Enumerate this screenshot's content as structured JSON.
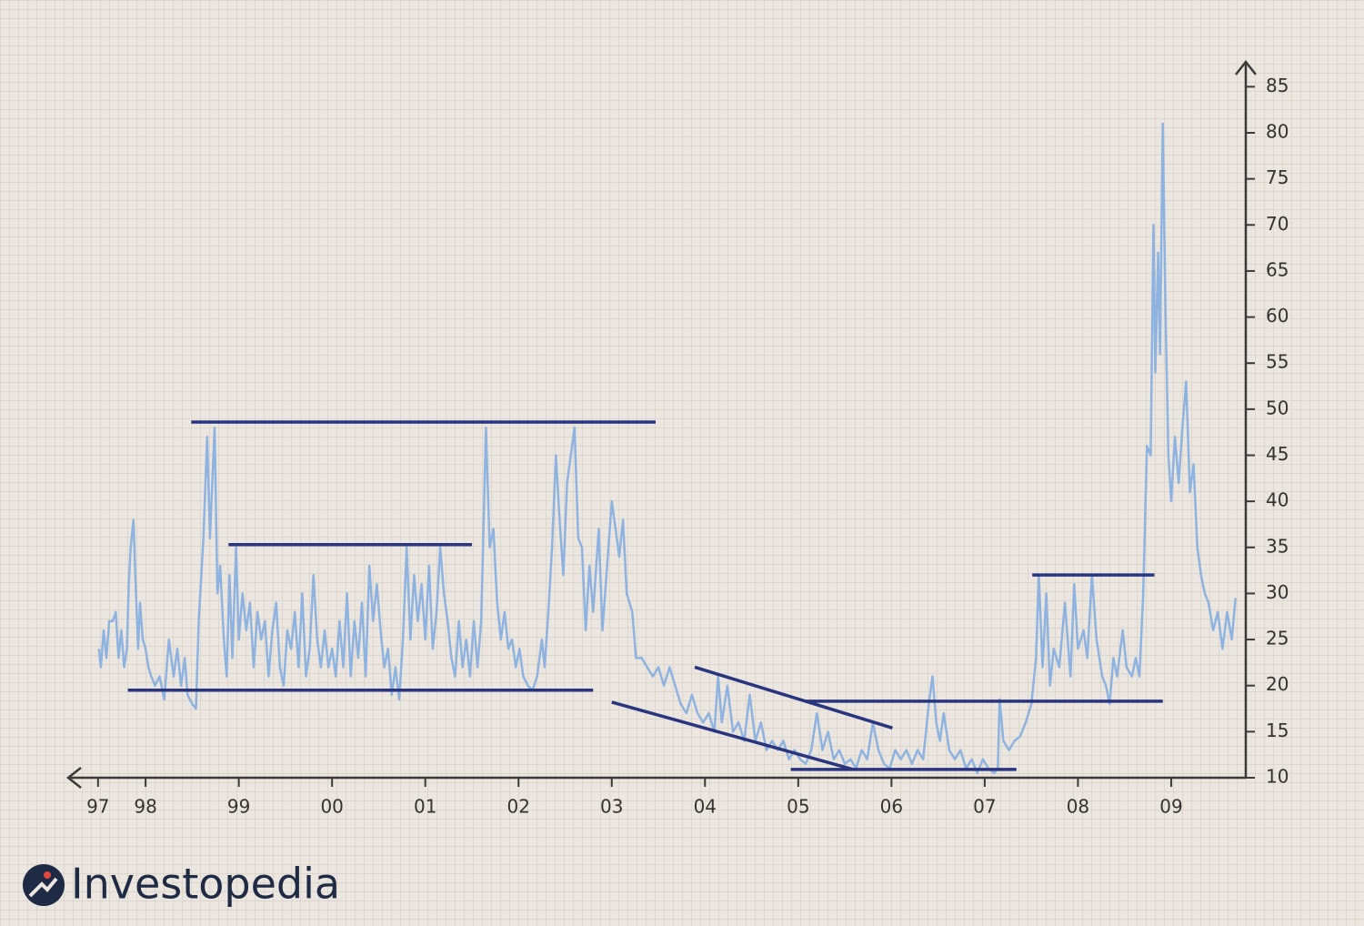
{
  "chart_data": {
    "type": "line",
    "color": "#8fb3e0",
    "trendline_color": "#2a3580",
    "xlim": [
      1997.17,
      2009.8
    ],
    "ylim": [
      10,
      87.7
    ],
    "xticks": [
      {
        "value": 1997.49,
        "label": "97"
      },
      {
        "value": 1998,
        "label": "98"
      },
      {
        "value": 1999,
        "label": "99"
      },
      {
        "value": 2000,
        "label": "00"
      },
      {
        "value": 2001,
        "label": "01"
      },
      {
        "value": 2002,
        "label": "02"
      },
      {
        "value": 2003,
        "label": "03"
      },
      {
        "value": 2004,
        "label": "04"
      },
      {
        "value": 2005,
        "label": "05"
      },
      {
        "value": 2006,
        "label": "06"
      },
      {
        "value": 2007,
        "label": "07"
      },
      {
        "value": 2008,
        "label": "08"
      },
      {
        "value": 2009,
        "label": "09"
      }
    ],
    "yticks": [
      10,
      15,
      20,
      25,
      30,
      35,
      40,
      45,
      50,
      55,
      60,
      65,
      70,
      75,
      80,
      85
    ],
    "x": [
      1997.5,
      1997.52,
      1997.55,
      1997.58,
      1997.61,
      1997.65,
      1997.68,
      1997.71,
      1997.74,
      1997.77,
      1997.8,
      1997.82,
      1997.84,
      1997.87,
      1997.89,
      1997.92,
      1997.94,
      1997.97,
      1998.0,
      1998.03,
      1998.06,
      1998.1,
      1998.15,
      1998.2,
      1998.25,
      1998.3,
      1998.34,
      1998.38,
      1998.42,
      1998.45,
      1998.5,
      1998.54,
      1998.57,
      1998.62,
      1998.66,
      1998.69,
      1998.74,
      1998.77,
      1998.8,
      1998.84,
      1998.87,
      1998.9,
      1998.93,
      1998.97,
      1999.0,
      1999.04,
      1999.08,
      1999.12,
      1999.16,
      1999.2,
      1999.24,
      1999.28,
      1999.32,
      1999.36,
      1999.4,
      1999.44,
      1999.48,
      1999.52,
      1999.56,
      1999.6,
      1999.64,
      1999.68,
      1999.72,
      1999.76,
      1999.8,
      1999.84,
      1999.88,
      1999.92,
      1999.96,
      2000.0,
      2000.04,
      2000.08,
      2000.12,
      2000.16,
      2000.2,
      2000.24,
      2000.28,
      2000.32,
      2000.36,
      2000.4,
      2000.44,
      2000.48,
      2000.52,
      2000.56,
      2000.6,
      2000.64,
      2000.68,
      2000.72,
      2000.76,
      2000.8,
      2000.84,
      2000.88,
      2000.92,
      2000.96,
      2001.0,
      2001.04,
      2001.08,
      2001.12,
      2001.16,
      2001.2,
      2001.24,
      2001.28,
      2001.32,
      2001.36,
      2001.4,
      2001.44,
      2001.48,
      2001.52,
      2001.56,
      2001.6,
      2001.65,
      2001.69,
      2001.73,
      2001.77,
      2001.81,
      2001.85,
      2001.89,
      2001.93,
      2001.97,
      2002.01,
      2002.05,
      2002.1,
      2002.15,
      2002.2,
      2002.25,
      2002.28,
      2002.32,
      2002.36,
      2002.4,
      2002.44,
      2002.48,
      2002.52,
      2002.56,
      2002.6,
      2002.64,
      2002.68,
      2002.72,
      2002.76,
      2002.8,
      2002.86,
      2002.9,
      2003.0,
      2003.04,
      2003.08,
      2003.12,
      2003.16,
      2003.22,
      2003.26,
      2003.32,
      2003.38,
      2003.44,
      2003.5,
      2003.56,
      2003.62,
      2003.68,
      2003.74,
      2003.8,
      2003.86,
      2003.92,
      2003.98,
      2004.04,
      2004.1,
      2004.14,
      2004.18,
      2004.24,
      2004.3,
      2004.36,
      2004.42,
      2004.48,
      2004.54,
      2004.6,
      2004.66,
      2004.72,
      2004.78,
      2004.84,
      2004.9,
      2004.96,
      2005.02,
      2005.08,
      2005.14,
      2005.2,
      2005.26,
      2005.32,
      2005.38,
      2005.44,
      2005.5,
      2005.56,
      2005.62,
      2005.68,
      2005.74,
      2005.8,
      2005.86,
      2005.92,
      2005.98,
      2006.04,
      2006.1,
      2006.16,
      2006.22,
      2006.28,
      2006.34,
      2006.4,
      2006.44,
      2006.48,
      2006.52,
      2006.56,
      2006.62,
      2006.68,
      2006.74,
      2006.8,
      2006.86,
      2006.92,
      2006.98,
      2007.04,
      2007.1,
      2007.14,
      2007.16,
      2007.2,
      2007.26,
      2007.32,
      2007.38,
      2007.44,
      2007.5,
      2007.55,
      2007.58,
      2007.62,
      2007.66,
      2007.7,
      2007.74,
      2007.8,
      2007.86,
      2007.92,
      2007.96,
      2008.0,
      2008.06,
      2008.1,
      2008.15,
      2008.2,
      2008.26,
      2008.3,
      2008.34,
      2008.38,
      2008.42,
      2008.48,
      2008.52,
      2008.58,
      2008.62,
      2008.66,
      2008.7,
      2008.74,
      2008.78,
      2008.81,
      2008.83,
      2008.86,
      2008.88,
      2008.91,
      2008.94,
      2008.97,
      2009.0,
      2009.04,
      2009.08,
      2009.12,
      2009.16,
      2009.2,
      2009.24,
      2009.28,
      2009.32,
      2009.36,
      2009.4,
      2009.45,
      2009.5,
      2009.55,
      2009.6,
      2009.65,
      2009.69
    ],
    "values": [
      24,
      22,
      26,
      23,
      27,
      27,
      28,
      23,
      26,
      22,
      24,
      31,
      35,
      38,
      32,
      24,
      29,
      25,
      24,
      22,
      21,
      20,
      21,
      18.5,
      25,
      21,
      24,
      20,
      23,
      19,
      18,
      17.5,
      27,
      36,
      47,
      36,
      48,
      30,
      33,
      25,
      21,
      32,
      23,
      35,
      25,
      30,
      26,
      29,
      22,
      28,
      25,
      27,
      21,
      26,
      29,
      22,
      20,
      26,
      24,
      28,
      22,
      30,
      21,
      24,
      32,
      25,
      22,
      26,
      22,
      24,
      21,
      27,
      22,
      30,
      21,
      27,
      23,
      29,
      21,
      33,
      27,
      31,
      26,
      22,
      24,
      19,
      22,
      18.5,
      25,
      35,
      25,
      32,
      27,
      31,
      25,
      33,
      24,
      28,
      35,
      30,
      27,
      23,
      21,
      27,
      22,
      25,
      21,
      27,
      22,
      27,
      48,
      35,
      37,
      29,
      25,
      28,
      24,
      25,
      22,
      24,
      21,
      20,
      19.5,
      21,
      25,
      22,
      28,
      35,
      45,
      38,
      32,
      42,
      45,
      48,
      36,
      35,
      26,
      33,
      28,
      37,
      26,
      40,
      37,
      34,
      38,
      30,
      28,
      23,
      23,
      22,
      21,
      22,
      20,
      22,
      20,
      18,
      17,
      19,
      17,
      16,
      17,
      15,
      21,
      16,
      20,
      15,
      16,
      14,
      19,
      14,
      16,
      13,
      14,
      13,
      14,
      12,
      13,
      12,
      11.5,
      13,
      17,
      13,
      15,
      12,
      13,
      11.5,
      12,
      11,
      13,
      12,
      16,
      13,
      11.5,
      11,
      13,
      12,
      13,
      11.5,
      13,
      12,
      18,
      21,
      16,
      14,
      17,
      13,
      12,
      13,
      11,
      12,
      10.5,
      12,
      11,
      10.5,
      11,
      18.5,
      14,
      13,
      14,
      14.5,
      16,
      18,
      23,
      32,
      22,
      30,
      20,
      24,
      22,
      29,
      21,
      31,
      24,
      26,
      23,
      32,
      25,
      21,
      20,
      18,
      23,
      21,
      26,
      22,
      21,
      23,
      21,
      30,
      46,
      45,
      70,
      54,
      67,
      56,
      81,
      60,
      45,
      40,
      47,
      42,
      48,
      53,
      41,
      44,
      35,
      32,
      30,
      29,
      26,
      28,
      24,
      28,
      25,
      29.5
    ],
    "trendlines": [
      {
        "x": [
          1998.49,
          2003.47
        ],
        "y": [
          48.6,
          48.6
        ]
      },
      {
        "x": [
          1998.89,
          2001.5
        ],
        "y": [
          35.3,
          35.3
        ]
      },
      {
        "x": [
          1997.81,
          2002.8
        ],
        "y": [
          19.5,
          19.5
        ]
      },
      {
        "x": [
          2003.0,
          2005.59
        ],
        "y": [
          18.2,
          10.9
        ]
      },
      {
        "x": [
          2003.89,
          2006.01
        ],
        "y": [
          22.0,
          15.4
        ]
      },
      {
        "x": [
          2004.92,
          2007.34
        ],
        "y": [
          10.9,
          10.9
        ]
      },
      {
        "x": [
          2005.07,
          2008.91
        ],
        "y": [
          18.3,
          18.3
        ]
      },
      {
        "x": [
          2007.51,
          2008.82
        ],
        "y": [
          32.0,
          32.0
        ]
      }
    ]
  },
  "logo": "Investopedia"
}
